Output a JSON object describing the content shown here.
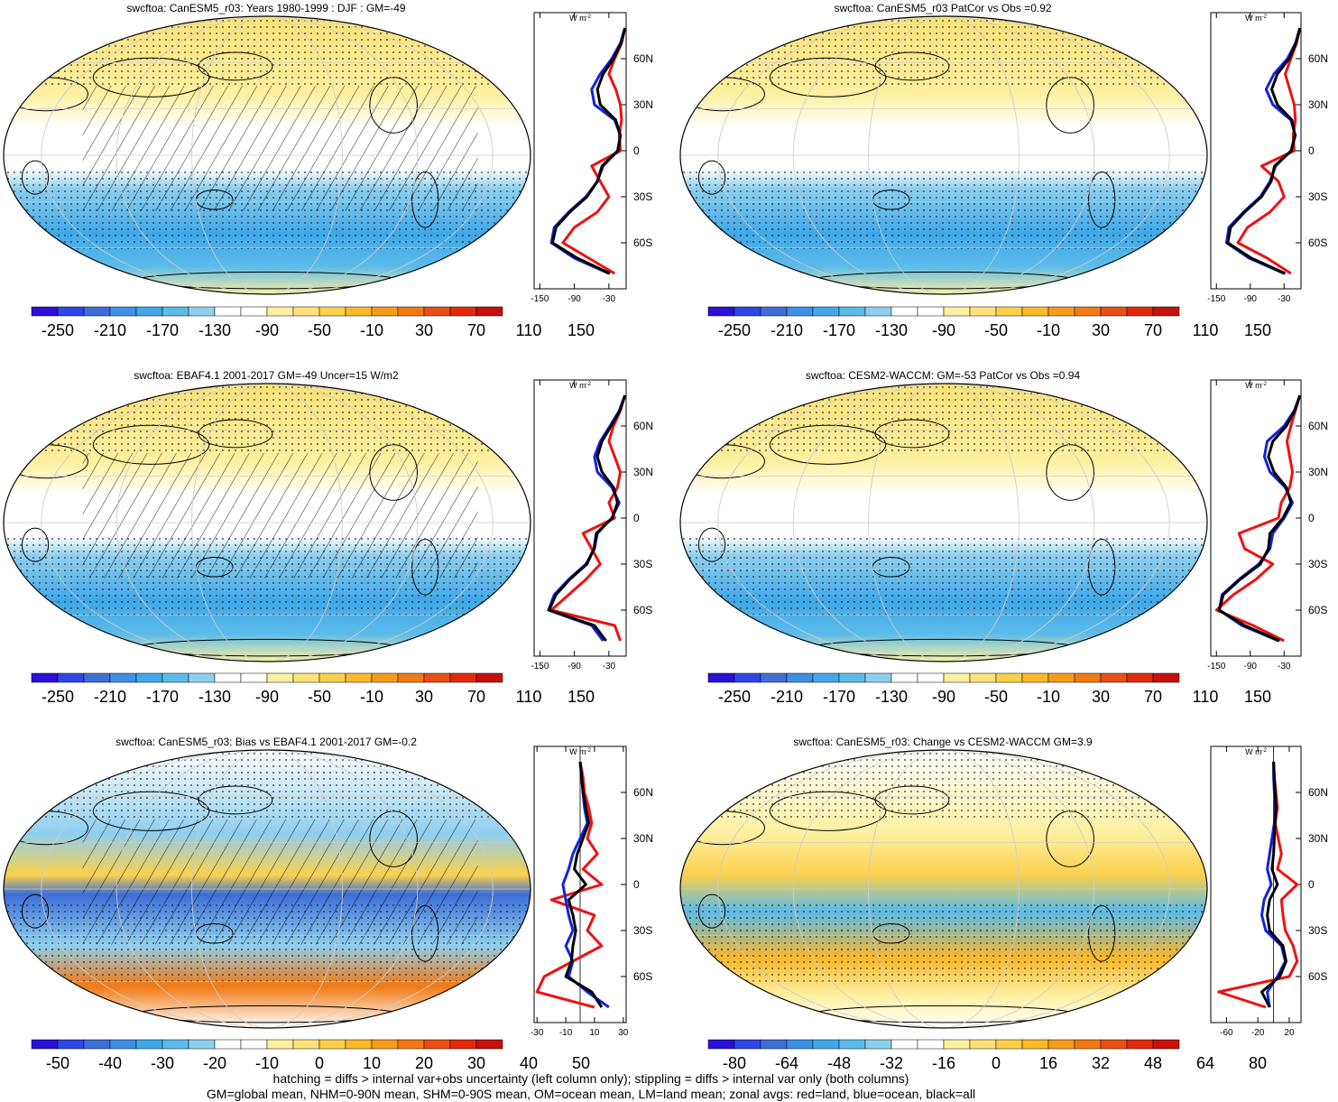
{
  "footer": {
    "line1": "hatching = diffs > internal var+obs uncertainty (left column only); stippling = diffs > internal var only (both columns)",
    "line2": "GM=global mean, NHM=0-90N mean, SHM=0-90S mean, OM=ocean mean, LM=land mean; zonal avgs: red=land, blue=ocean, black=all"
  },
  "colors": {
    "land": "#ee1111",
    "ocean": "#1122dd",
    "all": "#000000",
    "scale": [
      "#2a10d8",
      "#2f46e6",
      "#3c6ed6",
      "#3f8fe6",
      "#40a8e8",
      "#5bbbea",
      "#8ecfee",
      "#ffffff",
      "#ffffff",
      "#fdf0a0",
      "#fde27a",
      "#fcd04c",
      "#fbb82a",
      "#f79b1a",
      "#f27a14",
      "#ea4e10",
      "#e32a0c",
      "#c8100c"
    ]
  },
  "chart_data": [
    {
      "type": "heatmap",
      "title": "swcftoa: CanESM5_r03: Years 1980-1999 : DJF : GM=-49",
      "colorbar_labels": [
        "-250",
        "-210",
        "-170",
        "-130",
        "-90",
        "-50",
        "-10",
        "30",
        "70",
        "110",
        "150"
      ],
      "zonal": {
        "unit": "W m",
        "unit_sup": "-2",
        "yticks": [
          "60N",
          "30N",
          "0",
          "30S",
          "60S"
        ],
        "lat": [
          80,
          70,
          60,
          50,
          40,
          30,
          20,
          10,
          0,
          -10,
          -20,
          -30,
          -40,
          -50,
          -60,
          -70,
          -80
        ],
        "xticks": [
          "-150",
          "-90",
          "-30"
        ],
        "xticks_val": [
          -150,
          -90,
          -30
        ],
        "xlim": [
          -160,
          0
        ],
        "land": [
          -2,
          -8,
          -20,
          -30,
          -18,
          -10,
          -8,
          -12,
          -10,
          -60,
          -45,
          -30,
          -50,
          -90,
          -110,
          -65,
          -20
        ],
        "ocean": [
          -2,
          -10,
          -25,
          -45,
          -60,
          -55,
          -20,
          -10,
          -15,
          -40,
          -50,
          -70,
          -100,
          -125,
          -130,
          -90,
          -30
        ],
        "all": [
          -2,
          -9,
          -22,
          -40,
          -50,
          -45,
          -18,
          -10,
          -14,
          -42,
          -50,
          -68,
          -98,
          -122,
          -128,
          -85,
          -28
        ]
      }
    },
    {
      "type": "heatmap",
      "title": "swcftoa: CanESM5_r03 PatCor vs Obs =0.92",
      "colorbar_labels": [
        "-250",
        "-210",
        "-170",
        "-130",
        "-90",
        "-50",
        "-10",
        "30",
        "70",
        "110",
        "150"
      ],
      "zonal": {
        "unit": "W m",
        "unit_sup": "-2",
        "yticks": [
          "60N",
          "30N",
          "0",
          "30S",
          "60S"
        ],
        "lat": [
          80,
          70,
          60,
          50,
          40,
          30,
          20,
          10,
          0,
          -10,
          -20,
          -30,
          -40,
          -50,
          -60,
          -70,
          -80
        ],
        "xticks": [
          "-150",
          "-90",
          "-30"
        ],
        "xticks_val": [
          -150,
          -90,
          -30
        ],
        "xlim": [
          -160,
          0
        ],
        "land": [
          -2,
          -8,
          -18,
          -28,
          -20,
          -12,
          -10,
          -14,
          -12,
          -70,
          -40,
          -30,
          -55,
          -95,
          -112,
          -60,
          -18
        ],
        "ocean": [
          -2,
          -10,
          -24,
          -48,
          -62,
          -50,
          -18,
          -10,
          -18,
          -45,
          -55,
          -72,
          -102,
          -128,
          -132,
          -92,
          -30
        ],
        "all": [
          -2,
          -9,
          -21,
          -42,
          -52,
          -42,
          -16,
          -11,
          -17,
          -47,
          -53,
          -70,
          -100,
          -125,
          -130,
          -88,
          -28
        ]
      }
    },
    {
      "type": "heatmap",
      "title": "swcftoa: EBAF4.1 2001-2017 GM=-49 Uncer=15 W/m2",
      "colorbar_labels": [
        "-250",
        "-210",
        "-170",
        "-130",
        "-90",
        "-50",
        "-10",
        "30",
        "70",
        "110",
        "150"
      ],
      "zonal": {
        "unit": "W m",
        "unit_sup": "-2",
        "yticks": [
          "60N",
          "30N",
          "0",
          "30S",
          "60S"
        ],
        "lat": [
          80,
          70,
          60,
          50,
          40,
          30,
          20,
          10,
          0,
          -10,
          -20,
          -30,
          -40,
          -50,
          -60,
          -70,
          -80
        ],
        "xticks": [
          "-150",
          "-90",
          "-30"
        ],
        "xticks_val": [
          -150,
          -90,
          -30
        ],
        "xlim": [
          -160,
          0
        ],
        "land": [
          -2,
          -10,
          -22,
          -30,
          -20,
          -10,
          -15,
          -30,
          -20,
          -75,
          -60,
          -45,
          -70,
          -100,
          -130,
          -20,
          -10
        ],
        "ocean": [
          -2,
          -12,
          -28,
          -45,
          -55,
          -50,
          -25,
          -12,
          -25,
          -50,
          -55,
          -70,
          -100,
          -125,
          -135,
          -60,
          -40
        ],
        "all": [
          -2,
          -11,
          -26,
          -42,
          -50,
          -42,
          -22,
          -15,
          -24,
          -52,
          -56,
          -68,
          -98,
          -122,
          -134,
          -55,
          -35
        ]
      }
    },
    {
      "type": "heatmap",
      "title": "swcftoa: CESM2-WACCM: GM=-53 PatCor vs Obs =0.94",
      "colorbar_labels": [
        "-250",
        "-210",
        "-170",
        "-130",
        "-90",
        "-50",
        "-10",
        "30",
        "70",
        "110",
        "150"
      ],
      "zonal": {
        "unit": "W m",
        "unit_sup": "-2",
        "yticks": [
          "60N",
          "30N",
          "0",
          "30S",
          "60S"
        ],
        "lat": [
          80,
          70,
          60,
          50,
          40,
          30,
          20,
          10,
          0,
          -10,
          -20,
          -30,
          -40,
          -50,
          -60,
          -70,
          -80
        ],
        "xticks": [
          "-150",
          "-90",
          "-30"
        ],
        "xticks_val": [
          -150,
          -90,
          -30
        ],
        "xlim": [
          -160,
          0
        ],
        "land": [
          -2,
          -10,
          -18,
          -25,
          -20,
          -15,
          -20,
          -35,
          -40,
          -110,
          -100,
          -50,
          -80,
          -120,
          -150,
          -85,
          -30
        ],
        "ocean": [
          -2,
          -12,
          -30,
          -60,
          -65,
          -55,
          -28,
          -15,
          -30,
          -50,
          -55,
          -75,
          -110,
          -140,
          -145,
          -105,
          -40
        ],
        "all": [
          -2,
          -11,
          -26,
          -50,
          -58,
          -48,
          -26,
          -18,
          -32,
          -55,
          -58,
          -72,
          -108,
          -138,
          -145,
          -100,
          -38
        ]
      }
    },
    {
      "type": "heatmap",
      "title": "swcftoa: CanESM5_r03: Bias vs EBAF4.1 2001-2017 GM=-0.2",
      "colorbar_labels": [
        "-50",
        "-40",
        "-30",
        "-20",
        "-10",
        "0",
        "10",
        "20",
        "30",
        "40",
        "50"
      ],
      "zonal": {
        "unit": "W m",
        "unit_sup": "-2",
        "yticks": [
          "60N",
          "30N",
          "0",
          "30S",
          "60S"
        ],
        "lat": [
          80,
          70,
          60,
          50,
          40,
          30,
          20,
          10,
          0,
          -10,
          -20,
          -30,
          -40,
          -50,
          -60,
          -70,
          -80
        ],
        "xticks": [
          "-30",
          "-10",
          "10",
          "30"
        ],
        "xticks_val": [
          -30,
          -10,
          10,
          30
        ],
        "xlim": [
          -32,
          32
        ],
        "land": [
          0,
          2,
          3,
          6,
          8,
          5,
          12,
          2,
          15,
          -20,
          10,
          5,
          15,
          -5,
          -25,
          -30,
          10
        ],
        "ocean": [
          0,
          1,
          2,
          3,
          5,
          0,
          -5,
          -8,
          -12,
          -10,
          -8,
          -5,
          -10,
          -5,
          -8,
          5,
          20
        ],
        "all": [
          0,
          1,
          2,
          4,
          6,
          2,
          -2,
          -4,
          4,
          -8,
          -5,
          -3,
          -5,
          -6,
          -10,
          8,
          15
        ]
      }
    },
    {
      "type": "heatmap",
      "title": "swcftoa: CanESM5_r03: Change vs CESM2-WACCM GM=3.9",
      "colorbar_labels": [
        "-80",
        "-64",
        "-48",
        "-32",
        "-16",
        "0",
        "16",
        "32",
        "48",
        "64",
        "80"
      ],
      "zonal": {
        "unit": "W m",
        "unit_sup": "-2",
        "yticks": [
          "60N",
          "30N",
          "0",
          "30S",
          "60S"
        ],
        "lat": [
          80,
          70,
          60,
          50,
          40,
          30,
          20,
          10,
          0,
          -10,
          -20,
          -30,
          -40,
          -50,
          -60,
          -70,
          -80
        ],
        "xticks": [
          "-60",
          "-20",
          "20"
        ],
        "xticks_val": [
          -60,
          -20,
          20
        ],
        "xlim": [
          -80,
          35
        ],
        "land": [
          0,
          1,
          3,
          5,
          2,
          6,
          10,
          5,
          30,
          10,
          12,
          15,
          25,
          30,
          20,
          -70,
          -10
        ],
        "ocean": [
          0,
          0,
          1,
          2,
          1,
          -2,
          -5,
          -8,
          -3,
          -12,
          -15,
          -10,
          10,
          15,
          5,
          -8,
          -5
        ],
        "all": [
          0,
          1,
          2,
          3,
          2,
          1,
          0,
          -2,
          5,
          -5,
          -8,
          -5,
          12,
          16,
          8,
          -15,
          -5
        ]
      }
    }
  ]
}
